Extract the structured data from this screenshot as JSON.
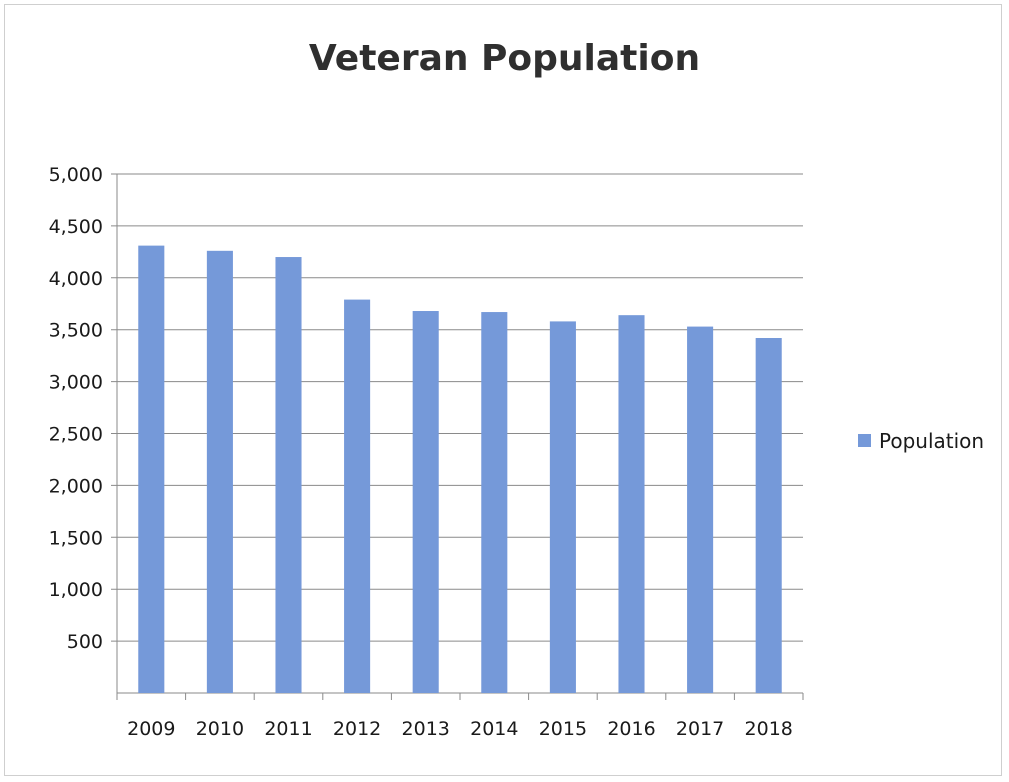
{
  "chart_data": {
    "type": "bar",
    "title": "Veteran Population",
    "xlabel": "",
    "ylabel": "",
    "categories": [
      "2009",
      "2010",
      "2011",
      "2012",
      "2013",
      "2014",
      "2015",
      "2016",
      "2017",
      "2018"
    ],
    "series": [
      {
        "name": "Population",
        "values": [
          4310,
          4260,
          4200,
          3790,
          3680,
          3670,
          3580,
          3640,
          3530,
          3420
        ]
      }
    ],
    "ylim": [
      0,
      5000
    ],
    "yticks": [
      500,
      1000,
      1500,
      2000,
      2500,
      3000,
      3500,
      4000,
      4500,
      5000
    ],
    "ytick_labels": [
      "500",
      "1,000",
      "1,500",
      "2,000",
      "2,500",
      "3,000",
      "3,500",
      "4,000",
      "4,500",
      "5,000"
    ],
    "grid": true,
    "legend_position": "right",
    "colors": {
      "bar": "#7599d9",
      "grid": "#8a8a8a",
      "axis": "#8a8a8a"
    }
  }
}
